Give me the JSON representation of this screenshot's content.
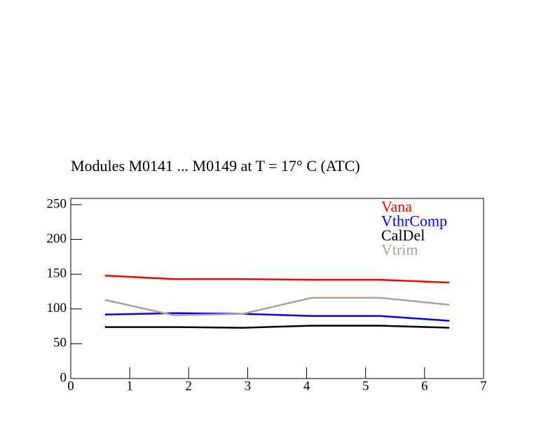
{
  "chart_data": {
    "type": "line",
    "title": "Modules M0141 ... M0149 at T =   17° C (ATC)",
    "x": [
      0.58,
      1.75,
      2.92,
      4.08,
      5.25,
      6.42
    ],
    "series": [
      {
        "name": "Vana",
        "color": "#ff0000",
        "values": [
          148,
          143,
          143,
          142,
          142,
          138
        ]
      },
      {
        "name": "VthrComp",
        "color": "#0000ff",
        "values": [
          92,
          94,
          93,
          90,
          90,
          83
        ]
      },
      {
        "name": "CalDel",
        "color": "#000000",
        "values": [
          74,
          74,
          73,
          76,
          76,
          73
        ]
      },
      {
        "name": "Vtrim",
        "color": "#b0a09a",
        "values": [
          113,
          91,
          93,
          116,
          116,
          106
        ]
      }
    ],
    "xlim": [
      0,
      7
    ],
    "xticks": [
      0,
      1,
      2,
      3,
      4,
      5,
      6,
      7
    ],
    "ylim": [
      0,
      259
    ],
    "yticks": [
      0,
      50,
      100,
      150,
      200,
      250
    ],
    "legend": "top-right"
  }
}
